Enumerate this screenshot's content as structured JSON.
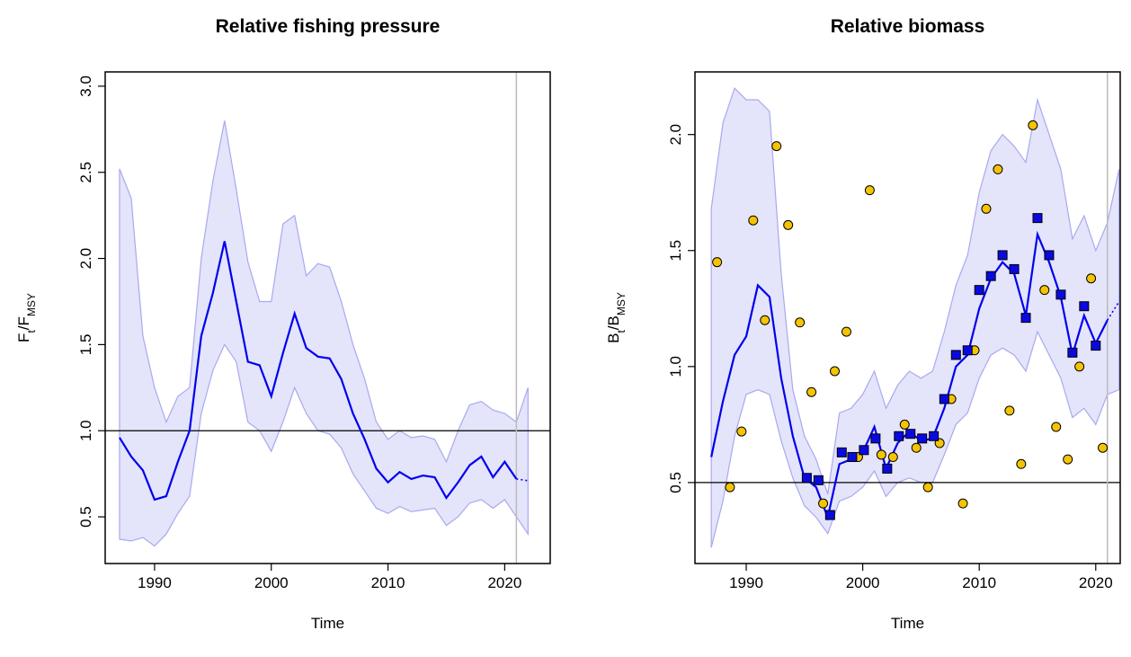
{
  "chart_data": [
    {
      "type": "line",
      "title": "Relative fishing pressure",
      "xlabel": "Time",
      "ylabel": [
        {
          "text": "F"
        },
        {
          "text": "t",
          "sub": true
        },
        {
          "text": "/F"
        },
        {
          "text": "MSY",
          "sub": true
        }
      ],
      "xlim": [
        1985.77,
        2023.9
      ],
      "ylim": [
        0.229,
        3.083
      ],
      "xticks": [
        1990,
        2000,
        2010,
        2020
      ],
      "yticks": [
        0.5,
        {
          "value": 1,
          "label": "1.0"
        },
        1.5,
        {
          "value": 2,
          "label": "2.0"
        },
        2.5,
        {
          "value": 3,
          "label": "3.0"
        }
      ],
      "hline": 1,
      "vline": 2021,
      "x": [
        1987,
        1988,
        1989,
        1990,
        1991,
        1992,
        1993,
        1994,
        1995,
        1996,
        1997,
        1998,
        1999,
        2000,
        2001,
        2002,
        2003,
        2004,
        2005,
        2006,
        2007,
        2008,
        2009,
        2010,
        2011,
        2012,
        2013,
        2014,
        2015,
        2016,
        2017,
        2018,
        2019,
        2020,
        2021,
        2022
      ],
      "line": {
        "color": "#0000ee",
        "values": [
          0.96,
          0.85,
          0.77,
          0.6,
          0.62,
          0.82,
          1.0,
          1.55,
          1.8,
          2.1,
          1.75,
          1.4,
          1.38,
          1.2,
          1.45,
          1.68,
          1.48,
          1.43,
          1.42,
          1.3,
          1.1,
          0.95,
          0.78,
          0.7,
          0.76,
          0.72,
          0.74,
          0.73,
          0.61,
          0.7,
          0.8,
          0.85,
          0.73,
          0.82,
          0.72,
          null
        ]
      },
      "forecast": {
        "color": "#0000ee",
        "values": [
          null,
          null,
          null,
          null,
          null,
          null,
          null,
          null,
          null,
          null,
          null,
          null,
          null,
          null,
          null,
          null,
          null,
          null,
          null,
          null,
          null,
          null,
          null,
          null,
          null,
          null,
          null,
          null,
          null,
          null,
          null,
          null,
          null,
          null,
          0.72,
          0.71
        ]
      },
      "band": {
        "color": "#e4e4fb",
        "edge": "#a9a9ee",
        "lower": [
          0.37,
          0.36,
          0.38,
          0.33,
          0.4,
          0.52,
          0.62,
          1.1,
          1.35,
          1.5,
          1.4,
          1.05,
          1.0,
          0.88,
          1.05,
          1.25,
          1.1,
          1.0,
          0.98,
          0.9,
          0.75,
          0.65,
          0.55,
          0.52,
          0.56,
          0.53,
          0.54,
          0.55,
          0.45,
          0.5,
          0.58,
          0.6,
          0.55,
          0.6,
          0.5,
          0.4
        ],
        "upper": [
          2.52,
          2.35,
          1.55,
          1.25,
          1.05,
          1.2,
          1.25,
          2.0,
          2.45,
          2.8,
          2.4,
          1.98,
          1.75,
          1.75,
          2.2,
          2.25,
          1.9,
          1.97,
          1.95,
          1.75,
          1.5,
          1.3,
          1.05,
          0.95,
          1.0,
          0.96,
          0.97,
          0.95,
          0.82,
          1.0,
          1.15,
          1.17,
          1.12,
          1.1,
          1.05,
          1.25
        ]
      },
      "points": []
    },
    {
      "type": "line",
      "title": "Relative biomass",
      "xlabel": "Time",
      "ylabel": [
        {
          "text": "B"
        },
        {
          "text": "t",
          "sub": true
        },
        {
          "text": "/B"
        },
        {
          "text": "MSY",
          "sub": true
        }
      ],
      "xlim": [
        1985.6,
        2022.1
      ],
      "ylim": [
        0.151,
        2.27
      ],
      "xticks": [
        1990,
        2000,
        2010,
        2020
      ],
      "yticks": [
        0.5,
        {
          "value": 1,
          "label": "1.0"
        },
        1.5,
        {
          "value": 2,
          "label": "2.0"
        }
      ],
      "hline": 0.5,
      "vline": 2021,
      "x": [
        1987,
        1988,
        1989,
        1990,
        1991,
        1992,
        1993,
        1994,
        1995,
        1996,
        1997,
        1998,
        1999,
        2000,
        2001,
        2002,
        2003,
        2004,
        2005,
        2006,
        2007,
        2008,
        2009,
        2010,
        2011,
        2012,
        2013,
        2014,
        2015,
        2016,
        2017,
        2018,
        2019,
        2020,
        2021,
        2022
      ],
      "line": {
        "color": "#0000ee",
        "values": [
          0.61,
          0.85,
          1.05,
          1.13,
          1.35,
          1.3,
          0.95,
          0.7,
          0.52,
          0.48,
          0.35,
          0.58,
          0.6,
          0.63,
          0.74,
          0.56,
          0.67,
          0.72,
          0.68,
          0.69,
          0.82,
          1.0,
          1.05,
          1.25,
          1.38,
          1.45,
          1.4,
          1.22,
          1.57,
          1.45,
          1.3,
          1.05,
          1.22,
          1.1,
          1.2,
          null
        ]
      },
      "forecast": {
        "color": "#0000ee",
        "values": [
          null,
          null,
          null,
          null,
          null,
          null,
          null,
          null,
          null,
          null,
          null,
          null,
          null,
          null,
          null,
          null,
          null,
          null,
          null,
          null,
          null,
          null,
          null,
          null,
          null,
          null,
          null,
          null,
          null,
          null,
          null,
          null,
          null,
          null,
          1.2,
          1.28
        ]
      },
      "band": {
        "color": "#e4e4fb",
        "edge": "#a9a9ee",
        "lower": [
          0.22,
          0.42,
          0.7,
          0.88,
          0.9,
          0.88,
          0.68,
          0.52,
          0.4,
          0.35,
          0.28,
          0.42,
          0.44,
          0.48,
          0.55,
          0.44,
          0.5,
          0.52,
          0.5,
          0.5,
          0.62,
          0.75,
          0.8,
          0.95,
          1.05,
          1.08,
          1.05,
          0.98,
          1.15,
          1.05,
          0.95,
          0.78,
          0.82,
          0.75,
          0.88,
          0.9
        ],
        "upper": [
          1.68,
          2.05,
          2.2,
          2.15,
          2.15,
          2.1,
          1.4,
          0.9,
          0.7,
          0.6,
          0.45,
          0.8,
          0.82,
          0.88,
          0.98,
          0.82,
          0.92,
          0.98,
          0.95,
          0.98,
          1.15,
          1.35,
          1.48,
          1.75,
          1.93,
          2.0,
          1.95,
          1.88,
          2.15,
          2.0,
          1.85,
          1.55,
          1.65,
          1.5,
          1.62,
          1.85
        ]
      },
      "points": [
        {
          "shape": "circle",
          "color": "#f5c400",
          "x": [
            1987.5,
            1988.6,
            1989.6,
            1990.6,
            1991.6,
            1992.6,
            1993.6,
            1994.6,
            1995.6,
            1996.6,
            1997.6,
            1998.6,
            1999.6,
            2000.6,
            2001.6,
            2002.6,
            2003.6,
            2004.6,
            2005.6,
            2006.6,
            2007.6,
            2008.6,
            2009.6,
            2010.6,
            2011.6,
            2012.6,
            2013.6,
            2014.6,
            2015.6,
            2016.6,
            2017.6,
            2018.6,
            2019.6,
            2020.6
          ],
          "y": [
            1.45,
            0.48,
            0.72,
            1.63,
            1.2,
            1.95,
            1.61,
            1.19,
            0.89,
            0.41,
            0.98,
            1.15,
            0.61,
            1.76,
            0.62,
            0.61,
            0.75,
            0.65,
            0.48,
            0.67,
            0.86,
            0.41,
            1.07,
            1.68,
            1.85,
            0.81,
            0.58,
            2.04,
            1.33,
            0.74,
            0.6,
            1.0,
            1.38,
            0.65
          ]
        },
        {
          "shape": "square",
          "color": "#0a0ae0",
          "x": [
            1995.2,
            1996.2,
            1997.2,
            1998.2,
            1999.1,
            2000.1,
            2001.1,
            2002.1,
            2003.1,
            2004.1,
            2005.1,
            2006.1,
            2007.0,
            2008.0,
            2009.0,
            2010.0,
            2011.0,
            2012.0,
            2013.0,
            2014.0,
            2015.0,
            2016.0,
            2017.0,
            2018.0,
            2019.0,
            2020.0
          ],
          "y": [
            0.52,
            0.51,
            0.36,
            0.63,
            0.61,
            0.64,
            0.69,
            0.56,
            0.7,
            0.71,
            0.69,
            0.7,
            0.86,
            1.05,
            1.07,
            1.33,
            1.39,
            1.48,
            1.42,
            1.21,
            1.64,
            1.48,
            1.31,
            1.06,
            1.26,
            1.09
          ]
        }
      ]
    }
  ]
}
